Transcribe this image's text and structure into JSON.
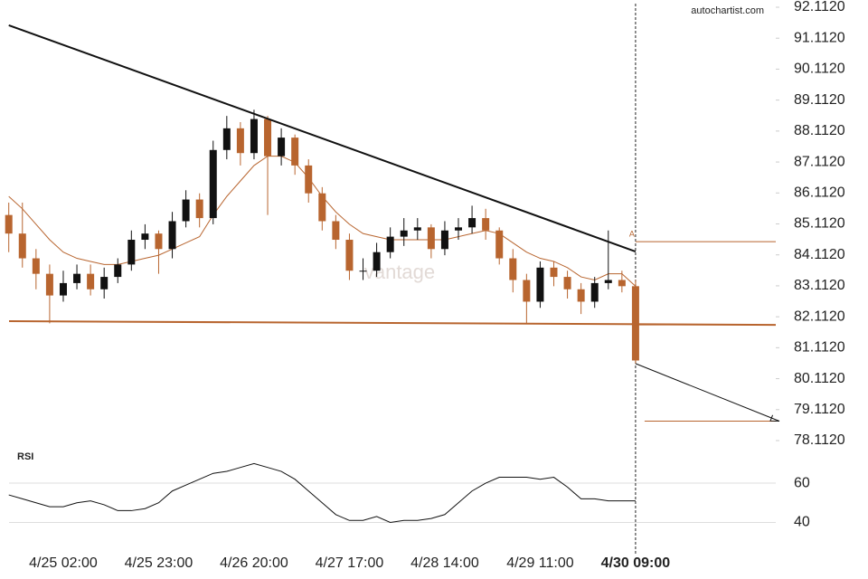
{
  "chart_data": {
    "type": "candlestick",
    "source": "autochartist.com",
    "watermark": "vantage",
    "up_color": "#111111",
    "down_color": "#b8652f",
    "line_color": "#b8652f",
    "categories": [
      null,
      null,
      null,
      null,
      "4/25 02:00",
      null,
      null,
      null,
      null,
      null,
      null,
      "4/25 23:00",
      null,
      null,
      null,
      null,
      null,
      null,
      "4/26 20:00",
      null,
      null,
      null,
      null,
      null,
      null,
      "4/27 17:00",
      null,
      null,
      null,
      null,
      null,
      null,
      "4/28 14:00",
      null,
      null,
      null,
      null,
      null,
      null,
      "4/29 11:00",
      null,
      null,
      null,
      null,
      null,
      null,
      "4/30 09:00"
    ],
    "open": [
      85.4,
      84.8,
      84.0,
      83.5,
      82.8,
      83.2,
      83.5,
      83.0,
      83.4,
      83.8,
      84.6,
      84.8,
      84.3,
      85.2,
      85.9,
      85.3,
      87.5,
      88.2,
      87.4,
      88.5,
      87.3,
      87.9,
      87.0,
      86.1,
      85.2,
      84.6,
      83.6,
      83.6,
      84.2,
      84.7,
      84.9,
      85.0,
      84.3,
      84.9,
      85.0,
      85.3,
      84.9,
      84.0,
      83.3,
      82.6,
      83.7,
      83.4,
      83.0,
      82.6,
      83.2,
      83.3,
      83.1
    ],
    "high": [
      85.8,
      85.8,
      84.3,
      83.8,
      83.6,
      83.8,
      83.8,
      83.7,
      84.0,
      84.9,
      85.1,
      84.9,
      85.5,
      86.2,
      86.1,
      87.8,
      88.6,
      88.4,
      88.8,
      88.6,
      88.2,
      88.0,
      87.2,
      86.3,
      85.4,
      84.8,
      84.0,
      84.5,
      85.0,
      85.3,
      85.3,
      85.1,
      85.2,
      85.3,
      85.7,
      85.6,
      85.0,
      84.3,
      83.5,
      83.9,
      83.9,
      83.6,
      83.2,
      83.4,
      84.9,
      83.6,
      83.3
    ],
    "low": [
      84.2,
      83.7,
      83.0,
      81.9,
      82.6,
      83.0,
      82.8,
      82.7,
      83.2,
      83.6,
      84.3,
      83.5,
      84.0,
      85.0,
      85.0,
      85.1,
      87.2,
      87.0,
      87.2,
      85.4,
      87.0,
      86.7,
      85.8,
      84.9,
      84.3,
      83.3,
      83.3,
      83.4,
      84.0,
      84.4,
      84.6,
      84.0,
      84.1,
      84.6,
      84.8,
      84.6,
      83.8,
      82.9,
      81.9,
      82.4,
      83.1,
      82.7,
      82.2,
      82.4,
      83.0,
      82.9,
      80.6
    ],
    "close": [
      84.8,
      84.0,
      83.5,
      82.8,
      83.2,
      83.5,
      83.0,
      83.4,
      83.8,
      84.6,
      84.8,
      84.3,
      85.2,
      85.9,
      85.3,
      87.5,
      88.2,
      87.4,
      88.5,
      87.3,
      87.9,
      87.0,
      86.1,
      85.2,
      84.6,
      83.6,
      83.6,
      84.2,
      84.7,
      84.9,
      85.0,
      84.3,
      84.9,
      85.0,
      85.3,
      84.9,
      84.0,
      83.3,
      82.6,
      83.7,
      83.4,
      83.0,
      82.6,
      83.2,
      83.3,
      83.1,
      80.7
    ],
    "ma": [
      86.0,
      85.6,
      85.1,
      84.6,
      84.2,
      84.0,
      83.9,
      83.8,
      83.8,
      83.9,
      84.0,
      84.1,
      84.3,
      84.5,
      84.7,
      85.4,
      86.0,
      86.5,
      87.0,
      87.3,
      87.3,
      87.1,
      86.6,
      86.0,
      85.5,
      85.1,
      84.8,
      84.7,
      84.6,
      84.6,
      84.6,
      84.6,
      84.6,
      84.7,
      84.8,
      84.9,
      84.8,
      84.5,
      84.2,
      84.0,
      83.9,
      83.7,
      83.4,
      83.3,
      83.5,
      83.5,
      83.1
    ],
    "resistance": [
      91.53,
      84.22
    ],
    "support": [
      81.97,
      81.85
    ],
    "levels": [
      84.54,
      81.85,
      78.74
    ],
    "pattern_label": "A",
    "ylim": [
      78.3,
      92.3
    ],
    "yticks": [
      {
        "value": 92.112,
        "label": "92.1120"
      },
      {
        "value": 91.112,
        "label": "91.1120"
      },
      {
        "value": 90.112,
        "label": "90.1120"
      },
      {
        "value": 89.112,
        "label": "89.1120"
      },
      {
        "value": 88.112,
        "label": "88.1120"
      },
      {
        "value": 87.112,
        "label": "87.1120"
      },
      {
        "value": 86.112,
        "label": "86.1120"
      },
      {
        "value": 85.112,
        "label": "85.1120"
      },
      {
        "value": 84.112,
        "label": "84.1120"
      },
      {
        "value": 83.112,
        "label": "83.1120"
      },
      {
        "value": 82.112,
        "label": "82.1120"
      },
      {
        "value": 81.112,
        "label": "81.1120"
      },
      {
        "value": 80.112,
        "label": "80.1120"
      },
      {
        "value": 79.112,
        "label": "79.1120"
      },
      {
        "value": 78.112,
        "label": "78.1120"
      }
    ],
    "rsi": {
      "label": "RSI",
      "values": [
        54,
        52,
        50,
        48,
        48,
        50,
        51,
        49,
        46,
        46,
        47,
        50,
        56,
        59,
        62,
        65,
        66,
        68,
        70,
        68,
        66,
        62,
        56,
        50,
        44,
        41,
        41,
        43,
        40,
        41,
        41,
        42,
        44,
        50,
        56,
        60,
        63,
        63,
        63,
        62,
        63,
        58,
        52,
        52,
        51,
        51,
        51
      ],
      "ylim": [
        25,
        78
      ],
      "yticks": [
        60,
        40
      ]
    }
  }
}
